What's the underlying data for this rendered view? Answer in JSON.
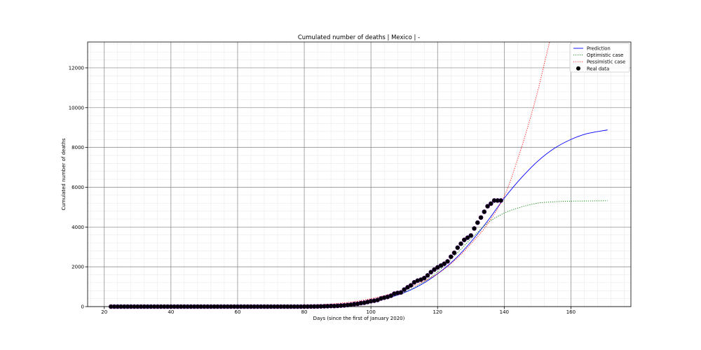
{
  "chart_data": {
    "type": "line",
    "title": "Cumulated number of deaths | Mexico | -",
    "xlabel": "Days (since the first of January 2020)",
    "ylabel": "Cumulated number of deaths",
    "xlim": [
      15,
      178
    ],
    "ylim": [
      0,
      13300
    ],
    "xticks": [
      20,
      40,
      60,
      80,
      100,
      120,
      140,
      160
    ],
    "yticks": [
      0,
      2000,
      4000,
      6000,
      8000,
      10000,
      12000
    ],
    "grid": true,
    "legend_position": "top-right",
    "series": [
      {
        "name": "Prediction",
        "style": "solid",
        "color": "#0000ff",
        "x": [
          22,
          40,
          60,
          70,
          80,
          85,
          90,
          95,
          100,
          105,
          110,
          115,
          120,
          125,
          130,
          135,
          140,
          145,
          150,
          155,
          160,
          165,
          171
        ],
        "y": [
          0,
          0,
          0,
          10,
          40,
          70,
          110,
          170,
          280,
          430,
          700,
          1100,
          1650,
          2350,
          3250,
          4300,
          5450,
          6450,
          7300,
          7950,
          8400,
          8700,
          8880
        ]
      },
      {
        "name": "Optimistic case",
        "style": "dotted",
        "color": "#008000",
        "x": [
          22,
          40,
          60,
          70,
          80,
          85,
          90,
          95,
          100,
          105,
          110,
          115,
          120,
          125,
          130,
          135,
          140,
          145,
          150,
          155,
          160,
          165,
          171
        ],
        "y": [
          0,
          0,
          0,
          10,
          30,
          55,
          90,
          150,
          260,
          430,
          720,
          1150,
          1750,
          2550,
          3400,
          4200,
          4700,
          5000,
          5200,
          5270,
          5300,
          5310,
          5320
        ]
      },
      {
        "name": "Pessimistic case",
        "style": "dotted",
        "color": "#ff0000",
        "x": [
          22,
          40,
          60,
          70,
          80,
          85,
          90,
          95,
          100,
          105,
          110,
          115,
          120,
          125,
          130,
          135,
          140,
          144,
          147,
          150,
          152,
          153.6
        ],
        "y": [
          0,
          0,
          0,
          15,
          60,
          100,
          160,
          250,
          400,
          600,
          850,
          1200,
          1650,
          2300,
          3150,
          4150,
          5550,
          7400,
          9000,
          10800,
          12200,
          13300
        ]
      },
      {
        "name": "Real data",
        "style": "markers",
        "color": "#000000",
        "x": [
          22,
          23,
          24,
          25,
          26,
          27,
          28,
          29,
          30,
          31,
          32,
          33,
          34,
          35,
          36,
          37,
          38,
          39,
          40,
          41,
          42,
          43,
          44,
          45,
          46,
          47,
          48,
          49,
          50,
          51,
          52,
          53,
          54,
          55,
          56,
          57,
          58,
          59,
          60,
          61,
          62,
          63,
          64,
          65,
          66,
          67,
          68,
          69,
          70,
          71,
          72,
          73,
          74,
          75,
          76,
          77,
          78,
          79,
          80,
          81,
          82,
          83,
          84,
          85,
          86,
          87,
          88,
          89,
          90,
          91,
          92,
          93,
          94,
          95,
          96,
          97,
          98,
          99,
          100,
          101,
          102,
          103,
          104,
          105,
          106,
          107,
          108,
          109,
          110,
          111,
          112,
          113,
          114,
          115,
          116,
          117,
          118,
          119,
          120,
          121,
          122,
          123,
          124,
          125,
          126,
          127,
          128,
          129,
          130,
          131,
          132,
          133,
          134,
          135,
          136,
          137,
          138,
          139
        ],
        "y": [
          0,
          0,
          0,
          0,
          0,
          0,
          0,
          0,
          0,
          0,
          0,
          0,
          0,
          0,
          0,
          0,
          0,
          0,
          0,
          0,
          0,
          0,
          0,
          0,
          0,
          0,
          0,
          0,
          0,
          0,
          0,
          0,
          0,
          0,
          0,
          0,
          0,
          0,
          0,
          0,
          0,
          0,
          0,
          0,
          0,
          0,
          0,
          0,
          0,
          0,
          0,
          0,
          0,
          0,
          0,
          0,
          0,
          0,
          2,
          2,
          4,
          5,
          8,
          12,
          16,
          20,
          28,
          29,
          37,
          50,
          60,
          79,
          94,
          125,
          141,
          174,
          194,
          233,
          273,
          296,
          332,
          406,
          449,
          486,
          546,
          650,
          686,
          712,
          857,
          970,
          1069,
          1221,
          1305,
          1351,
          1434,
          1569,
          1732,
          1859,
          1972,
          2061,
          2154,
          2271,
          2507,
          2704,
          2961,
          3160,
          3353,
          3465,
          3573,
          3926,
          4220,
          4477,
          4767,
          5045,
          5177,
          5332,
          5332,
          5332
        ]
      }
    ]
  }
}
